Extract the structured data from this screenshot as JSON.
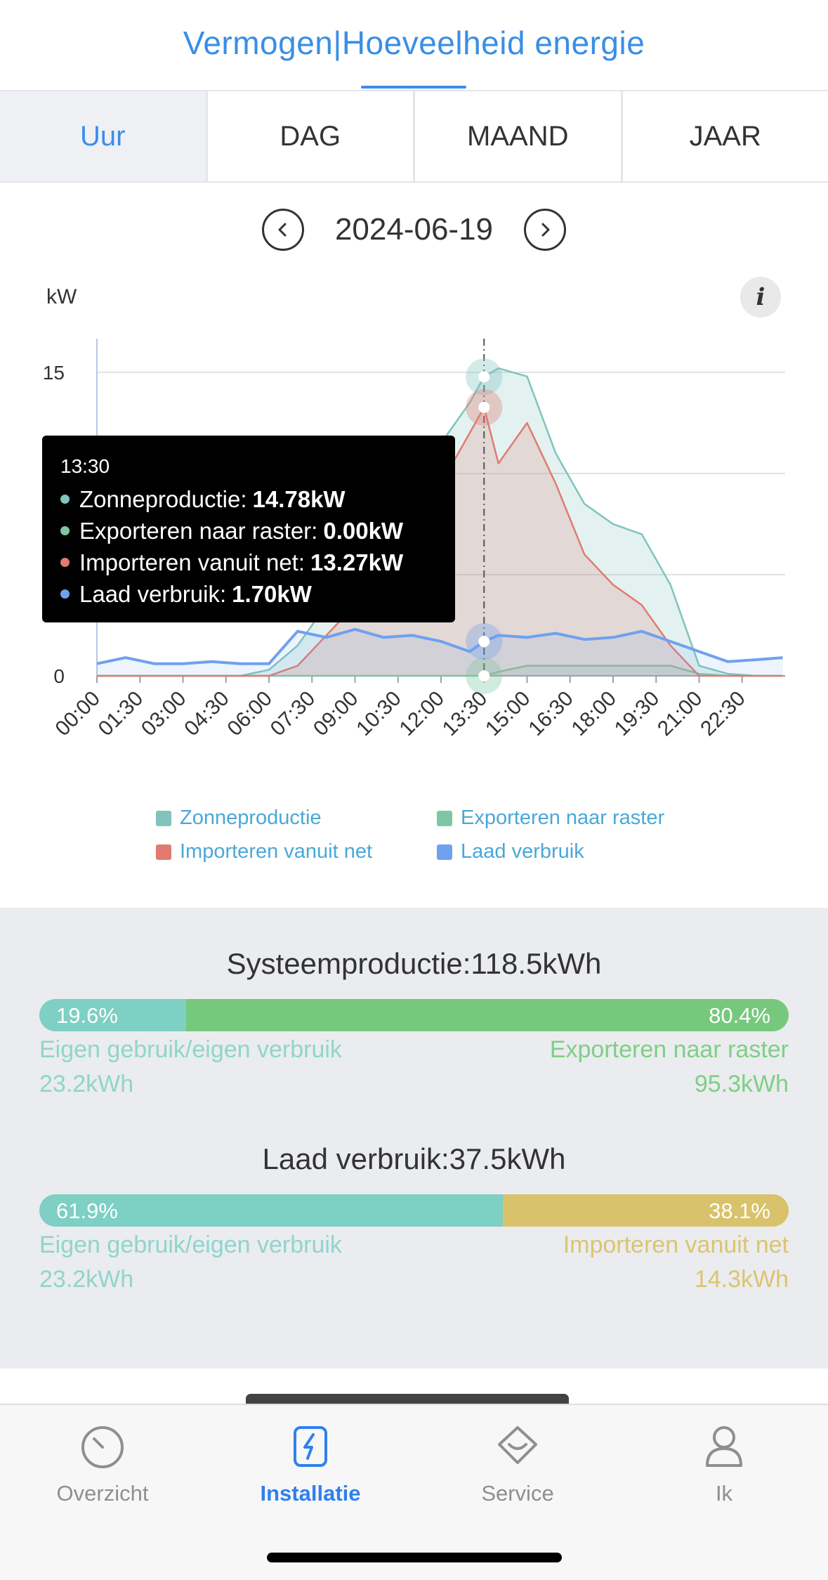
{
  "header": {
    "title": "Vermogen|Hoeveelheid energie"
  },
  "tabs": [
    {
      "label": "Uur",
      "active": true
    },
    {
      "label": "DAG",
      "active": false
    },
    {
      "label": "MAAND",
      "active": false
    },
    {
      "label": "JAAR",
      "active": false
    }
  ],
  "date_nav": {
    "prev_icon": "chevron-left-icon",
    "date": "2024-06-19",
    "next_icon": "chevron-right-icon"
  },
  "chart_header": {
    "unit": "kW",
    "info_icon": "info-icon",
    "info_glyph": "i"
  },
  "chart_data": {
    "type": "area",
    "ylabel": "kW",
    "ylim": [
      0,
      15
    ],
    "yticks": [
      "0",
      "15"
    ],
    "xticks": [
      "00:00",
      "01:30",
      "03:00",
      "04:30",
      "06:00",
      "07:30",
      "09:00",
      "10:30",
      "12:00",
      "13:30",
      "15:00",
      "16:30",
      "18:00",
      "19:30",
      "21:00",
      "22:30"
    ],
    "x": [
      "00:00",
      "01:00",
      "02:00",
      "03:00",
      "04:00",
      "05:00",
      "06:00",
      "07:00",
      "08:00",
      "09:00",
      "10:00",
      "11:00",
      "12:00",
      "13:00",
      "13:30",
      "14:00",
      "15:00",
      "16:00",
      "17:00",
      "18:00",
      "19:00",
      "20:00",
      "21:00",
      "22:00",
      "23:00",
      "23:55"
    ],
    "series": [
      {
        "name": "Zonneproductie",
        "color": "#7fc4bd",
        "values": [
          0,
          0,
          0,
          0,
          0,
          0,
          0.3,
          1.5,
          3.5,
          5.5,
          7.5,
          9.5,
          11.5,
          13.5,
          14.78,
          15.2,
          14.8,
          11.0,
          8.5,
          7.5,
          7.0,
          4.5,
          0.5,
          0.1,
          0,
          0
        ]
      },
      {
        "name": "Exporteren naar raster",
        "color": "#7fc7a4",
        "values": [
          0,
          0,
          0,
          0,
          0,
          0,
          0,
          0,
          0,
          0,
          0,
          0,
          0,
          0,
          0,
          0.2,
          0.5,
          0.5,
          0.5,
          0.5,
          0.5,
          0.5,
          0.1,
          0,
          0,
          0
        ]
      },
      {
        "name": "Importeren vanuit net",
        "color": "#e07b72",
        "values": [
          0,
          0,
          0,
          0,
          0,
          0,
          0,
          0.5,
          2.0,
          3.5,
          5.5,
          7.5,
          9.5,
          12.0,
          13.27,
          10.5,
          12.5,
          9.5,
          6.0,
          4.5,
          3.5,
          1.5,
          0,
          0,
          0,
          0
        ]
      },
      {
        "name": "Laad verbruik",
        "color": "#6fa1ee",
        "values": [
          0.6,
          0.9,
          0.6,
          0.6,
          0.7,
          0.6,
          0.6,
          2.2,
          1.9,
          2.3,
          1.9,
          2.0,
          1.7,
          1.2,
          1.7,
          2.0,
          1.9,
          2.1,
          1.8,
          1.9,
          2.2,
          1.7,
          1.2,
          0.7,
          0.8,
          0.9
        ]
      }
    ],
    "grid": true,
    "legend": "bottom",
    "cursor_x": "13:30"
  },
  "tooltip": {
    "time": "13:30",
    "rows": [
      {
        "label": "Zonneproductie:",
        "value": "14.78kW",
        "color": "#7fc4bd"
      },
      {
        "label": "Exporteren naar raster:",
        "value": "0.00kW",
        "color": "#7fc7a4"
      },
      {
        "label": "Importeren vanuit net:",
        "value": "13.27kW",
        "color": "#e07b72"
      },
      {
        "label": "Laad verbruik:",
        "value": "1.70kW",
        "color": "#6fa1ee"
      }
    ]
  },
  "legend": [
    {
      "label": "Zonneproductie",
      "color": "#7fc4bd"
    },
    {
      "label": "Exporteren naar raster",
      "color": "#7fc7a4"
    },
    {
      "label": "Importeren vanuit net",
      "color": "#e07b72"
    },
    {
      "label": "Laad verbruik",
      "color": "#6fa1ee"
    }
  ],
  "system_production": {
    "title": "Systeemproductie:118.5kWh",
    "left_pct": "19.6%",
    "left_fraction": 0.196,
    "left_color": "#7ecfc4",
    "right_pct": "80.4%",
    "right_color": "#76c97c",
    "left_label": "Eigen gebruik/eigen verbruik",
    "left_value": "23.2kWh",
    "right_label": "Exporteren naar raster",
    "right_value": "95.3kWh"
  },
  "load_consumption": {
    "title": "Laad verbruik:37.5kWh",
    "left_pct": "61.9%",
    "left_fraction": 0.619,
    "left_color": "#7ecfc4",
    "right_pct": "38.1%",
    "right_color": "#d8c26c",
    "left_label": "Eigen gebruik/eigen verbruik",
    "left_value": "23.2kWh",
    "right_label": "Importeren vanuit net",
    "right_value": "14.3kWh"
  },
  "bottom_nav": [
    {
      "label": "Overzicht",
      "icon": "gauge-icon",
      "active": false
    },
    {
      "label": "Installatie",
      "icon": "installation-icon",
      "active": true
    },
    {
      "label": "Service",
      "icon": "service-icon",
      "active": false
    },
    {
      "label": "Ik",
      "icon": "person-icon",
      "active": false
    }
  ]
}
